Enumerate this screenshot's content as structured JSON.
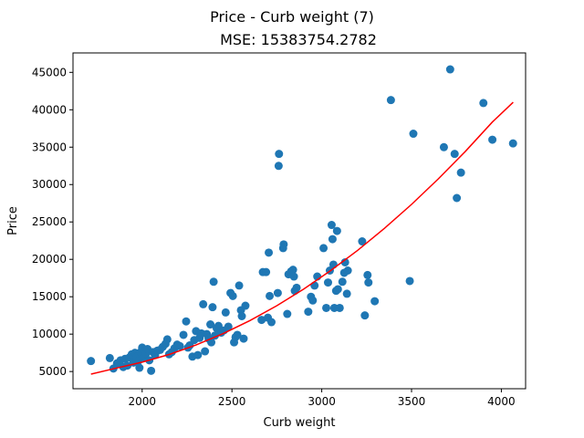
{
  "chart_data": {
    "type": "scatter",
    "title": "Price - Curb weight (7)",
    "subtitle": "MSE: 15383754.2782",
    "xlabel": "Curb weight",
    "ylabel": "Price",
    "xlim": [
      1615,
      4135
    ],
    "ylim": [
      2700,
      47600
    ],
    "xticks": [
      2000,
      2500,
      3000,
      3500,
      4000
    ],
    "yticks": [
      5000,
      10000,
      15000,
      20000,
      25000,
      30000,
      35000,
      40000,
      45000
    ],
    "grid": false,
    "point_color": "#1f77b4",
    "fit_color": "#ff0000",
    "points": [
      [
        1715,
        6400
      ],
      [
        1820,
        6800
      ],
      [
        1840,
        5400
      ],
      [
        1860,
        6100
      ],
      [
        1880,
        6500
      ],
      [
        1895,
        5600
      ],
      [
        1905,
        6700
      ],
      [
        1918,
        5800
      ],
      [
        1930,
        6900
      ],
      [
        1942,
        7300
      ],
      [
        1952,
        6200
      ],
      [
        1960,
        7500
      ],
      [
        1970,
        7000
      ],
      [
        1978,
        6400
      ],
      [
        1985,
        5500
      ],
      [
        1992,
        7600
      ],
      [
        2000,
        8200
      ],
      [
        2008,
        6900
      ],
      [
        2015,
        7800
      ],
      [
        2022,
        7400
      ],
      [
        2030,
        8000
      ],
      [
        2040,
        6500
      ],
      [
        2050,
        5100
      ],
      [
        2060,
        7600
      ],
      [
        2072,
        7200
      ],
      [
        2085,
        7800
      ],
      [
        2100,
        7900
      ],
      [
        2115,
        8300
      ],
      [
        2130,
        8700
      ],
      [
        2140,
        9300
      ],
      [
        2150,
        7300
      ],
      [
        2165,
        7600
      ],
      [
        2180,
        8100
      ],
      [
        2195,
        8600
      ],
      [
        2210,
        8400
      ],
      [
        2230,
        9900
      ],
      [
        2245,
        11700
      ],
      [
        2255,
        8200
      ],
      [
        2265,
        8500
      ],
      [
        2280,
        7000
      ],
      [
        2290,
        9200
      ],
      [
        2300,
        10400
      ],
      [
        2310,
        7200
      ],
      [
        2320,
        9500
      ],
      [
        2330,
        10100
      ],
      [
        2340,
        14000
      ],
      [
        2350,
        7700
      ],
      [
        2360,
        10000
      ],
      [
        2370,
        9400
      ],
      [
        2380,
        11300
      ],
      [
        2385,
        8900
      ],
      [
        2392,
        13600
      ],
      [
        2398,
        17000
      ],
      [
        2405,
        9800
      ],
      [
        2415,
        10800
      ],
      [
        2425,
        11100
      ],
      [
        2440,
        10200
      ],
      [
        2455,
        10500
      ],
      [
        2465,
        12900
      ],
      [
        2480,
        11000
      ],
      [
        2492,
        15500
      ],
      [
        2505,
        15100
      ],
      [
        2512,
        8900
      ],
      [
        2520,
        9600
      ],
      [
        2530,
        9900
      ],
      [
        2540,
        16500
      ],
      [
        2550,
        13200
      ],
      [
        2555,
        12400
      ],
      [
        2565,
        9400
      ],
      [
        2575,
        13800
      ],
      [
        2665,
        11900
      ],
      [
        2672,
        18300
      ],
      [
        2690,
        18300
      ],
      [
        2700,
        12200
      ],
      [
        2705,
        20900
      ],
      [
        2710,
        15100
      ],
      [
        2720,
        11600
      ],
      [
        2755,
        15500
      ],
      [
        2760,
        32500
      ],
      [
        2762,
        34100
      ],
      [
        2785,
        21500
      ],
      [
        2788,
        22000
      ],
      [
        2808,
        12700
      ],
      [
        2815,
        18000
      ],
      [
        2830,
        18400
      ],
      [
        2840,
        18600
      ],
      [
        2845,
        17700
      ],
      [
        2850,
        15800
      ],
      [
        2860,
        16200
      ],
      [
        2925,
        13000
      ],
      [
        2940,
        15000
      ],
      [
        2950,
        14500
      ],
      [
        2960,
        16500
      ],
      [
        2975,
        17700
      ],
      [
        3010,
        21500
      ],
      [
        3025,
        13500
      ],
      [
        3035,
        16900
      ],
      [
        3045,
        18500
      ],
      [
        3055,
        24600
      ],
      [
        3060,
        22700
      ],
      [
        3065,
        19300
      ],
      [
        3070,
        13500
      ],
      [
        3080,
        15800
      ],
      [
        3085,
        23800
      ],
      [
        3090,
        16000
      ],
      [
        3100,
        13500
      ],
      [
        3115,
        17000
      ],
      [
        3125,
        18200
      ],
      [
        3130,
        19600
      ],
      [
        3140,
        15400
      ],
      [
        3145,
        18500
      ],
      [
        3225,
        22400
      ],
      [
        3240,
        12500
      ],
      [
        3255,
        17900
      ],
      [
        3260,
        16900
      ],
      [
        3295,
        14400
      ],
      [
        3385,
        41300
      ],
      [
        3490,
        17100
      ],
      [
        3510,
        36800
      ],
      [
        3680,
        35000
      ],
      [
        3715,
        45400
      ],
      [
        3740,
        34100
      ],
      [
        3752,
        28200
      ],
      [
        3775,
        31600
      ],
      [
        3900,
        40900
      ],
      [
        3950,
        36000
      ],
      [
        4065,
        35500
      ]
    ],
    "fit": {
      "x": [
        1715,
        1850,
        2000,
        2150,
        2300,
        2450,
        2600,
        2750,
        2900,
        3050,
        3200,
        3350,
        3500,
        3650,
        3800,
        3950,
        4066
      ],
      "y": [
        4650,
        5420,
        6250,
        7280,
        8550,
        10060,
        11810,
        13800,
        16030,
        18500,
        21210,
        24160,
        27350,
        30780,
        34450,
        38360,
        41000
      ]
    }
  }
}
